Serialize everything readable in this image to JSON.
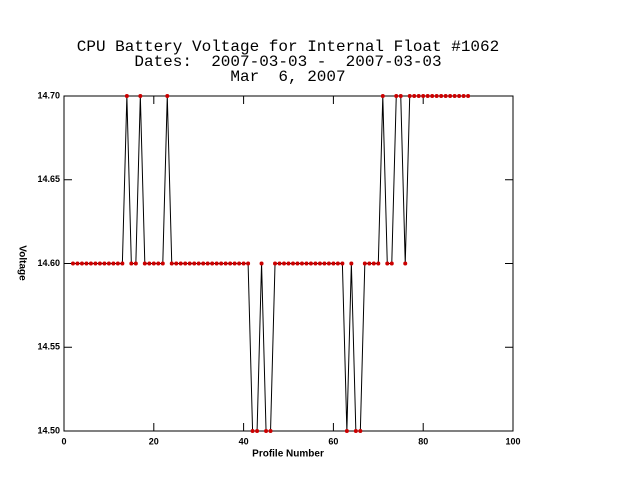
{
  "chart_data": {
    "type": "line",
    "title_lines": [
      "CPU Battery Voltage for Internal Float #1062",
      "Dates:  2007-03-03 -  2007-03-03",
      "Mar  6, 2007"
    ],
    "xlabel": "Profile Number",
    "ylabel": "Voltage",
    "x": [
      2,
      3,
      4,
      5,
      6,
      7,
      8,
      9,
      10,
      11,
      12,
      13,
      14,
      15,
      16,
      17,
      18,
      19,
      20,
      21,
      22,
      23,
      24,
      25,
      26,
      27,
      28,
      29,
      30,
      31,
      32,
      33,
      34,
      35,
      36,
      37,
      38,
      39,
      40,
      41,
      42,
      43,
      44,
      45,
      46,
      47,
      48,
      49,
      50,
      51,
      52,
      53,
      54,
      55,
      56,
      57,
      58,
      59,
      60,
      61,
      62,
      63,
      64,
      65,
      66,
      67,
      68,
      69,
      70,
      71,
      72,
      73,
      74,
      75,
      76,
      77,
      78,
      79,
      80,
      81,
      82,
      83,
      84,
      85,
      86,
      87,
      88,
      89,
      90
    ],
    "values": [
      14.6,
      14.6,
      14.6,
      14.6,
      14.6,
      14.6,
      14.6,
      14.6,
      14.6,
      14.6,
      14.6,
      14.6,
      14.7,
      14.6,
      14.6,
      14.7,
      14.6,
      14.6,
      14.6,
      14.6,
      14.6,
      14.7,
      14.6,
      14.6,
      14.6,
      14.6,
      14.6,
      14.6,
      14.6,
      14.6,
      14.6,
      14.6,
      14.6,
      14.6,
      14.6,
      14.6,
      14.6,
      14.6,
      14.6,
      14.6,
      14.5,
      14.5,
      14.6,
      14.5,
      14.5,
      14.6,
      14.6,
      14.6,
      14.6,
      14.6,
      14.6,
      14.6,
      14.6,
      14.6,
      14.6,
      14.6,
      14.6,
      14.6,
      14.6,
      14.6,
      14.6,
      14.5,
      14.6,
      14.5,
      14.5,
      14.6,
      14.6,
      14.6,
      14.6,
      14.7,
      14.6,
      14.6,
      14.7,
      14.7,
      14.6,
      14.7,
      14.7,
      14.7,
      14.7,
      14.7,
      14.7,
      14.7,
      14.7,
      14.7,
      14.7,
      14.7,
      14.7,
      14.7,
      14.7
    ],
    "line_color": "#000000",
    "marker_color": "#cc0000",
    "xlim": [
      0,
      100
    ],
    "xticks": [
      0,
      20,
      40,
      60,
      80,
      100
    ],
    "ylim": [
      14.5,
      14.7
    ],
    "yticks": [
      {
        "value": 14.5,
        "label": "14.50"
      },
      {
        "value": 14.55,
        "label": "14.55"
      },
      {
        "value": 14.6,
        "label": "14.60"
      },
      {
        "value": 14.65,
        "label": "14.65"
      },
      {
        "value": 14.7,
        "label": "14.70"
      }
    ]
  }
}
